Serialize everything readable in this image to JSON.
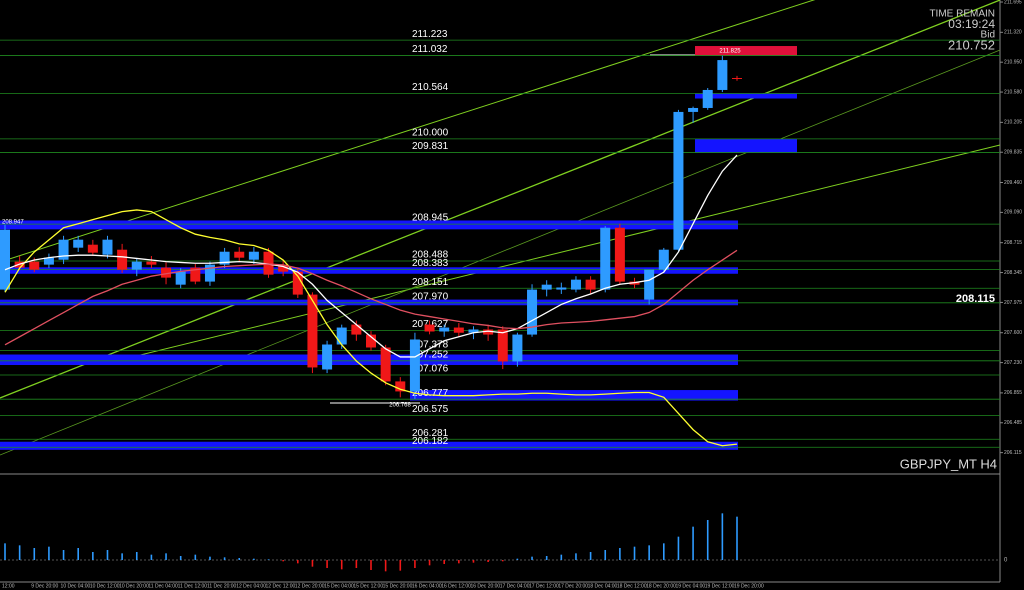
{
  "chart_data": {
    "type": "candlestick",
    "symbol": "GBPJPY_MT H4",
    "info": {
      "time_label": "TIME REMAIN",
      "time": "03:19:24",
      "bid_label": "Bid",
      "bid": 210.752
    },
    "cursor_label": "208.115",
    "annotations": [
      "211.825",
      "208.947",
      "206.768"
    ],
    "ylim": [
      205.9,
      211.72
    ],
    "yticks": [
      {
        "value": 211.695,
        "label": "211.695"
      },
      {
        "value": 211.32,
        "label": "211.320"
      },
      {
        "value": 210.95,
        "label": "210.950"
      },
      {
        "value": 210.58,
        "label": "210.580"
      },
      {
        "value": 210.205,
        "label": "210.205"
      },
      {
        "value": 209.835,
        "label": "209.835"
      },
      {
        "value": 209.46,
        "label": "209.460"
      },
      {
        "value": 209.09,
        "label": "209.090"
      },
      {
        "value": 208.715,
        "label": "208.715"
      },
      {
        "value": 208.345,
        "label": "208.345"
      },
      {
        "value": 207.975,
        "label": "207.975"
      },
      {
        "value": 207.6,
        "label": "207.600"
      },
      {
        "value": 207.23,
        "label": "207.230"
      },
      {
        "value": 206.855,
        "label": "206.855"
      },
      {
        "value": 206.485,
        "label": "206.485"
      },
      {
        "value": 206.115,
        "label": "206.115"
      }
    ],
    "levels": [
      {
        "value": 211.223,
        "label": "211.223"
      },
      {
        "value": 211.032,
        "label": "211.032"
      },
      {
        "value": 210.564,
        "label": "210.564"
      },
      {
        "value": 210,
        "label": "210.000"
      },
      {
        "value": 209.831,
        "label": "209.831"
      },
      {
        "value": 208.945,
        "label": "208.945"
      },
      {
        "value": 208.488,
        "label": "208.488"
      },
      {
        "value": 208.383,
        "label": "208.383"
      },
      {
        "value": 208.151,
        "label": "208.151"
      },
      {
        "value": 207.97,
        "label": "207.970"
      },
      {
        "value": 207.627,
        "label": "207.627"
      },
      {
        "value": 207.378,
        "label": "207.378"
      },
      {
        "value": 207.252,
        "label": "207.252"
      },
      {
        "value": 207.076,
        "label": "207.076"
      },
      {
        "value": 206.777,
        "label": "206.777"
      },
      {
        "value": 206.575,
        "label": "206.575"
      },
      {
        "value": 206.281,
        "label": "206.281"
      },
      {
        "value": 206.182,
        "label": "206.182"
      }
    ],
    "zones": [
      {
        "from": 211.03,
        "to": 211.15,
        "color": "#e0103a"
      },
      {
        "from": 210.5,
        "to": 210.56,
        "color": "#1414ff"
      },
      {
        "from": 209.83,
        "to": 210.0,
        "color": "#1414ff"
      },
      {
        "from": 208.88,
        "to": 208.99,
        "color": "#1414ff"
      },
      {
        "from": 208.33,
        "to": 208.41,
        "color": "#1414ff"
      },
      {
        "from": 207.94,
        "to": 208.01,
        "color": "#1414ff"
      },
      {
        "from": 207.2,
        "to": 207.33,
        "color": "#1414ff"
      },
      {
        "from": 206.76,
        "to": 206.89,
        "color": "#1414ff"
      },
      {
        "from": 206.15,
        "to": 206.25,
        "color": "#1414ff"
      }
    ],
    "up_color": "#2e9bff",
    "down_color": "#f01818",
    "open": [
      208.134,
      208.48,
      208.48,
      208.443,
      208.504,
      208.653,
      208.69,
      208.566,
      208.628,
      208.381,
      208.48,
      208.406,
      208.195,
      208.406,
      208.233,
      208.443,
      208.603,
      208.504,
      208.603,
      208.443,
      208.356,
      208.072,
      207.145,
      207.454,
      207.701,
      207.577,
      207.417,
      206.997,
      206.873,
      207.701,
      207.615,
      207.664,
      207.6,
      207.64,
      207.64,
      207.244,
      207.577,
      208.134,
      208.134,
      208.134,
      208.257,
      208.134,
      208.9,
      208.233,
      208.01,
      208.381,
      208.628,
      210.334,
      210.383,
      210.606,
      210.754
    ],
    "high": [
      208.937,
      208.55,
      208.53,
      208.58,
      208.8,
      208.8,
      208.75,
      208.8,
      208.7,
      208.52,
      208.55,
      208.47,
      208.4,
      208.45,
      208.48,
      208.65,
      208.66,
      208.66,
      208.65,
      208.5,
      208.4,
      208.1,
      207.5,
      207.7,
      207.75,
      207.62,
      207.45,
      207.05,
      207.6,
      207.75,
      207.7,
      207.72,
      207.68,
      207.7,
      207.68,
      207.6,
      208.2,
      208.25,
      208.22,
      208.3,
      208.3,
      208.92,
      208.95,
      208.28,
      208.35,
      208.65,
      210.36,
      210.4,
      210.63,
      211.03,
      210.78
    ],
    "low": [
      208.109,
      208.38,
      208.35,
      208.4,
      208.45,
      208.6,
      208.55,
      208.52,
      208.34,
      208.3,
      208.4,
      208.2,
      208.15,
      208.2,
      208.18,
      208.4,
      208.48,
      208.45,
      208.28,
      208.3,
      208.03,
      207.1,
      207.1,
      207.4,
      207.5,
      207.38,
      206.95,
      206.8,
      206.78,
      207.58,
      207.55,
      207.55,
      207.52,
      207.5,
      207.15,
      207.18,
      207.55,
      208.05,
      208.08,
      208.1,
      208.08,
      208.1,
      208.2,
      208.15,
      207.95,
      208.35,
      208.6,
      210.2,
      210.36,
      210.58,
      210.72
    ],
    "close": [
      208.875,
      208.406,
      208.381,
      208.529,
      208.752,
      208.752,
      208.591,
      208.752,
      208.381,
      208.48,
      208.443,
      208.282,
      208.356,
      208.233,
      208.443,
      208.603,
      208.529,
      208.603,
      208.319,
      208.356,
      208.072,
      207.17,
      207.454,
      207.664,
      207.577,
      207.417,
      206.997,
      206.873,
      207.516,
      207.615,
      207.664,
      207.6,
      207.64,
      207.577,
      207.244,
      207.577,
      208.134,
      208.195,
      208.16,
      208.257,
      208.134,
      208.9,
      208.233,
      208.195,
      208.381,
      208.628,
      210.334,
      210.383,
      210.606,
      210.976,
      210.752
    ],
    "lines": [
      {
        "color": "#ffff30",
        "values": [
          208.1,
          208.4,
          208.6,
          208.75,
          208.9,
          208.95,
          209.0,
          209.05,
          209.1,
          209.12,
          209.1,
          209.0,
          208.9,
          208.82,
          208.78,
          208.75,
          208.7,
          208.68,
          208.62,
          208.5,
          208.3,
          208.0,
          207.7,
          207.45,
          207.25,
          207.1,
          206.98,
          206.9,
          206.85,
          206.83,
          206.82,
          206.82,
          206.82,
          206.83,
          206.84,
          206.84,
          206.85,
          206.85,
          206.84,
          206.83,
          206.83,
          206.84,
          206.85,
          206.86,
          206.86,
          206.8,
          206.6,
          206.4,
          206.25,
          206.2,
          206.22
        ]
      },
      {
        "color": "#ffffff",
        "values": [
          208.38,
          208.45,
          208.5,
          208.53,
          208.55,
          208.56,
          208.56,
          208.55,
          208.54,
          208.52,
          208.5,
          208.48,
          208.47,
          208.46,
          208.46,
          208.47,
          208.48,
          208.47,
          208.45,
          208.42,
          208.35,
          208.2,
          208.0,
          207.85,
          207.7,
          207.55,
          207.4,
          207.3,
          207.3,
          207.4,
          207.5,
          207.55,
          207.6,
          207.62,
          207.6,
          207.65,
          207.75,
          207.85,
          207.95,
          208.02,
          208.08,
          208.15,
          208.2,
          208.22,
          208.25,
          208.35,
          208.6,
          208.95,
          209.3,
          209.6,
          209.8
        ]
      },
      {
        "color": "#e05060",
        "values": [
          207.45,
          207.55,
          207.65,
          207.75,
          207.85,
          207.95,
          208.05,
          208.12,
          208.2,
          208.25,
          208.3,
          208.33,
          208.36,
          208.38,
          208.4,
          208.42,
          208.43,
          208.44,
          208.45,
          208.44,
          208.4,
          208.33,
          208.25,
          208.18,
          208.1,
          208.02,
          207.95,
          207.88,
          207.83,
          207.8,
          207.77,
          207.74,
          207.71,
          207.69,
          207.66,
          207.65,
          207.67,
          207.7,
          207.72,
          207.73,
          207.74,
          207.76,
          207.78,
          207.8,
          207.85,
          207.95,
          208.1,
          208.25,
          208.38,
          208.5,
          208.62
        ]
      }
    ],
    "oscillator": {
      "ylim": [
        -0.3,
        1.2
      ],
      "yticks": [
        0
      ],
      "values": [
        0.25,
        0.22,
        0.18,
        0.2,
        0.15,
        0.18,
        0.12,
        0.15,
        0.1,
        0.12,
        0.08,
        0.1,
        0.06,
        0.08,
        0.05,
        0.04,
        0.03,
        0.02,
        0.01,
        -0.02,
        -0.05,
        -0.1,
        -0.12,
        -0.14,
        -0.12,
        -0.15,
        -0.17,
        -0.16,
        -0.12,
        -0.08,
        -0.06,
        -0.05,
        -0.04,
        -0.03,
        -0.02,
        0.02,
        0.05,
        0.06,
        0.08,
        0.1,
        0.12,
        0.15,
        0.18,
        0.2,
        0.22,
        0.25,
        0.35,
        0.5,
        0.6,
        0.7,
        0.65
      ]
    },
    "time_labels": [
      "12:00",
      "9 Dec 20:00",
      "10 Dec 04:00",
      "10 Dec 12:00",
      "10 Dec 20:00",
      "11 Dec 04:00",
      "11 Dec 12:00",
      "11 Dec 20:00",
      "12 Dec 04:00",
      "12 Dec 12:00",
      "12 Dec 20:00",
      "15 Dec 04:00",
      "15 Dec 12:00",
      "15 Dec 20:00",
      "16 Dec 04:00",
      "16 Dec 12:00",
      "16 Dec 20:00",
      "17 Dec 04:00",
      "17 Dec 12:00",
      "17 Dec 20:00",
      "18 Dec 04:00",
      "18 Dec 12:00",
      "18 Dec 20:00",
      "19 Dec 04:00",
      "19 Dec 12:00",
      "19 Dec 20:00"
    ]
  }
}
